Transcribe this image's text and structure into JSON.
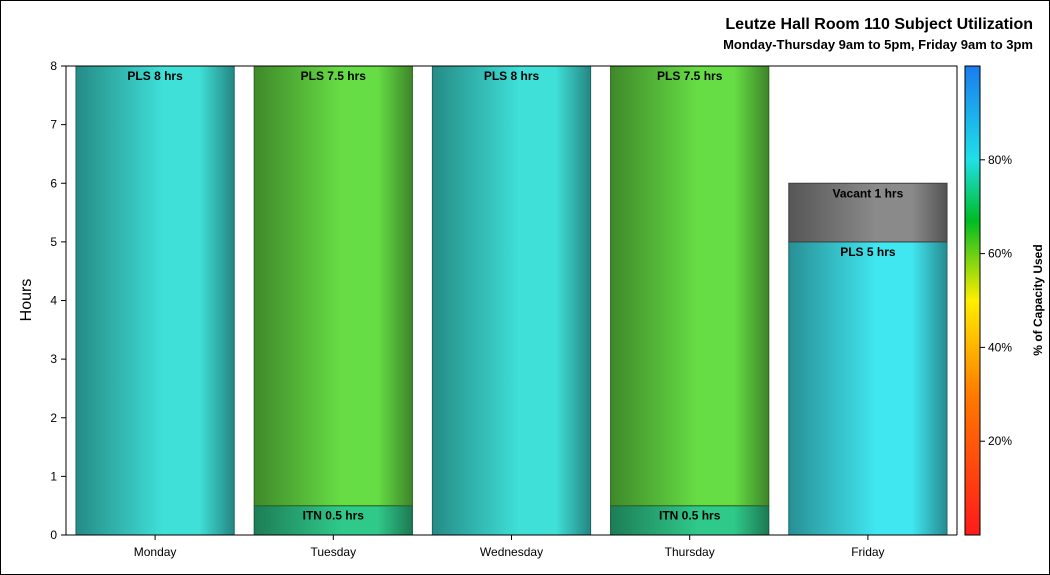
{
  "chart_data": {
    "type": "bar",
    "stacked": true,
    "title": "Leutze Hall Room 110 Subject Utilization",
    "subtitle": "Monday-Thursday 9am to 5pm, Friday 9am to 3pm",
    "xlabel": "",
    "ylabel": "Hours",
    "ylim": [
      0,
      8
    ],
    "yticks": [
      0,
      1,
      2,
      3,
      4,
      5,
      6,
      7,
      8
    ],
    "grid": false,
    "categories": [
      "Monday",
      "Tuesday",
      "Wednesday",
      "Thursday",
      "Friday"
    ],
    "bars": [
      {
        "category": "Monday",
        "segments": [
          {
            "label": "PLS 8 hrs",
            "value": 8,
            "color": "#3ee0d8"
          }
        ]
      },
      {
        "category": "Tuesday",
        "segments": [
          {
            "label": "ITN 0.5 hrs",
            "value": 0.5,
            "color": "#2fc98a"
          },
          {
            "label": "PLS 7.5 hrs",
            "value": 7.5,
            "color": "#66dd44"
          }
        ]
      },
      {
        "category": "Wednesday",
        "segments": [
          {
            "label": "PLS 8 hrs",
            "value": 8,
            "color": "#3ee0d8"
          }
        ]
      },
      {
        "category": "Thursday",
        "segments": [
          {
            "label": "ITN 0.5 hrs",
            "value": 0.5,
            "color": "#2fc98a"
          },
          {
            "label": "PLS 7.5 hrs",
            "value": 7.5,
            "color": "#66dd44"
          }
        ]
      },
      {
        "category": "Friday",
        "segments": [
          {
            "label": "PLS 5 hrs",
            "value": 5,
            "color": "#40e6f0"
          },
          {
            "label": "Vacant 1 hrs",
            "value": 1,
            "color": "#8a8a8a"
          }
        ]
      }
    ],
    "colorbar": {
      "label": "% of Capacity Used",
      "ticks": [
        "20%",
        "40%",
        "60%",
        "80%"
      ],
      "tick_values": [
        20,
        40,
        60,
        80
      ],
      "range": [
        0,
        100
      ],
      "stops": [
        {
          "value": 0,
          "color": "#ff1a1a"
        },
        {
          "value": 30,
          "color": "#ff7a00"
        },
        {
          "value": 50,
          "color": "#ffee00"
        },
        {
          "value": 67,
          "color": "#00bb22"
        },
        {
          "value": 80,
          "color": "#1fe0e8"
        },
        {
          "value": 100,
          "color": "#1a7cf0"
        }
      ]
    }
  }
}
